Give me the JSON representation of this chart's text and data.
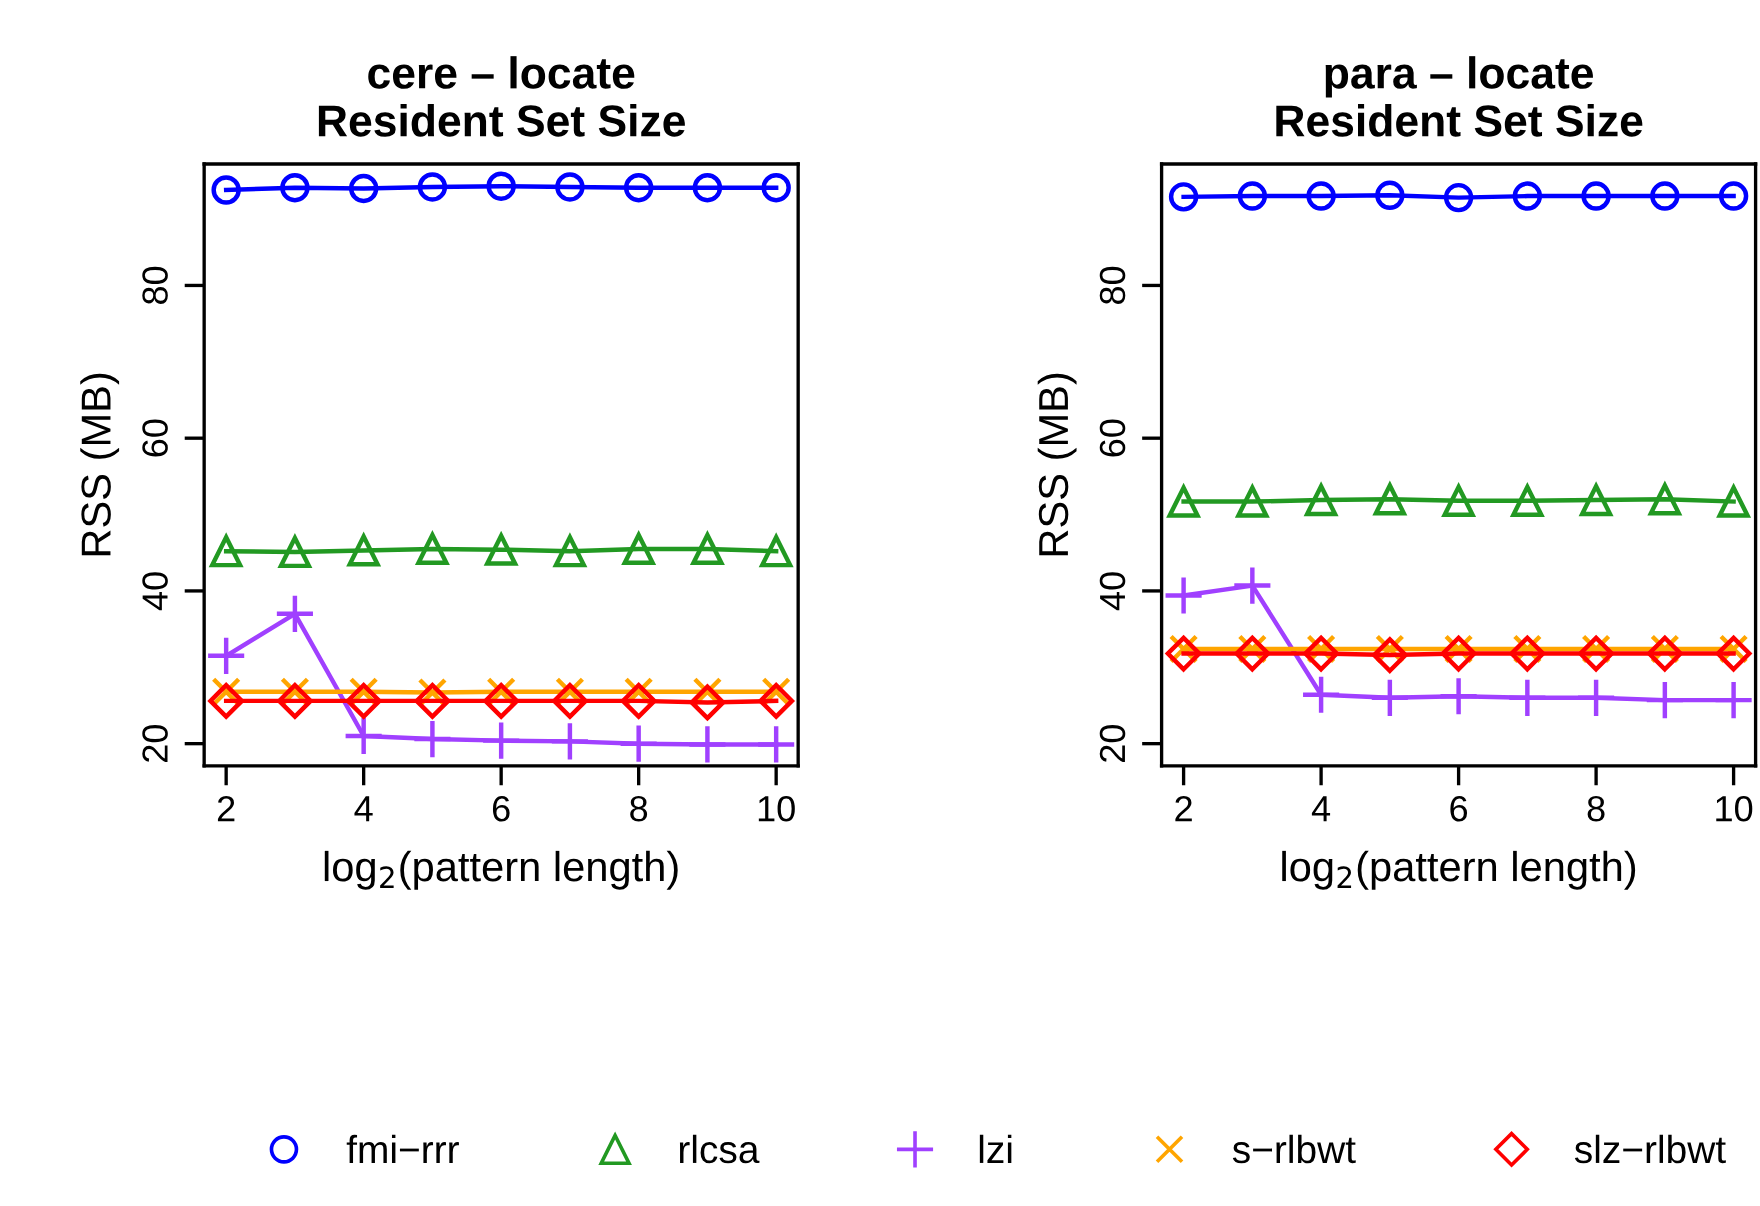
{
  "chart_data": [
    {
      "type": "line",
      "title": "cere – locate\nResident Set Size",
      "xlabel": "log$_{2}$(pattern length)",
      "ylabel": "RSS (MB)",
      "x": [
        2,
        3,
        4,
        5,
        6,
        7,
        8,
        9,
        10
      ],
      "xlim": [
        1.68,
        10.32
      ],
      "xticks": [
        2,
        4,
        6,
        8,
        10
      ],
      "ylim": [
        17.1,
        95.9
      ],
      "yticks": [
        20,
        40,
        60,
        80
      ],
      "grid": false,
      "legend": "bottom",
      "series": [
        {
          "name": "fmi−rrr",
          "color": "#0000ff",
          "marker": "circle",
          "values": [
            92.5,
            92.8,
            92.7,
            92.9,
            93.0,
            92.9,
            92.8,
            92.8,
            92.8
          ]
        },
        {
          "name": "rlcsa",
          "color": "#229922",
          "marker": "triangle",
          "values": [
            45.2,
            45.1,
            45.3,
            45.5,
            45.4,
            45.2,
            45.5,
            45.5,
            45.2
          ]
        },
        {
          "name": "lzi",
          "color": "#a040ff",
          "marker": "cross",
          "values": [
            31.5,
            37.0,
            21.0,
            20.6,
            20.4,
            20.3,
            20.0,
            19.9,
            19.9
          ]
        },
        {
          "name": "s−rlbwt",
          "color": "#ffa500",
          "marker": "x",
          "values": [
            26.8,
            26.8,
            26.8,
            26.7,
            26.8,
            26.8,
            26.8,
            26.8,
            26.8
          ]
        },
        {
          "name": "slz−rlbwt",
          "color": "#ff0000",
          "marker": "diamond",
          "values": [
            25.6,
            25.6,
            25.6,
            25.6,
            25.6,
            25.6,
            25.6,
            25.4,
            25.6
          ]
        }
      ]
    },
    {
      "type": "line",
      "title": "para – locate\nResident Set Size",
      "xlabel": "log$_{2}$(pattern length)",
      "ylabel": "RSS (MB)",
      "x": [
        2,
        3,
        4,
        5,
        6,
        7,
        8,
        9,
        10
      ],
      "xlim": [
        1.68,
        10.32
      ],
      "xticks": [
        2,
        4,
        6,
        8,
        10
      ],
      "ylim": [
        17.1,
        95.9
      ],
      "yticks": [
        20,
        40,
        60,
        80
      ],
      "grid": false,
      "series": [
        {
          "color": "#0000ff",
          "marker": "circle",
          "values": [
            91.6,
            91.7,
            91.7,
            91.8,
            91.5,
            91.7,
            91.7,
            91.7,
            91.7
          ]
        },
        {
          "color": "#229922",
          "marker": "triangle",
          "values": [
            51.7,
            51.7,
            51.9,
            52.0,
            51.8,
            51.8,
            51.9,
            52.0,
            51.7
          ]
        },
        {
          "color": "#a040ff",
          "marker": "cross",
          "values": [
            39.4,
            40.7,
            26.4,
            26.0,
            26.2,
            26.0,
            26.0,
            25.7,
            25.7
          ]
        },
        {
          "color": "#ffa500",
          "marker": "x",
          "values": [
            32.4,
            32.4,
            32.4,
            32.4,
            32.4,
            32.4,
            32.4,
            32.4,
            32.4
          ]
        },
        {
          "color": "#ff0000",
          "marker": "diamond",
          "values": [
            31.8,
            31.8,
            31.8,
            31.6,
            31.8,
            31.8,
            31.8,
            31.8,
            31.8
          ]
        }
      ]
    }
  ]
}
